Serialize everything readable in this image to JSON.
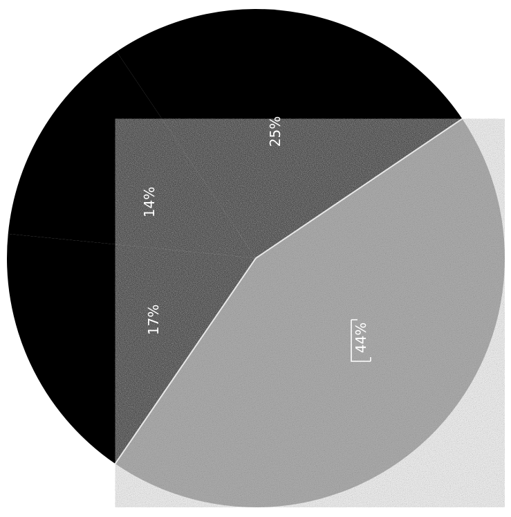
{
  "chart_data": {
    "type": "pie",
    "labels": [
      "25%",
      "14%",
      "17%",
      "44%"
    ],
    "values": [
      25,
      14,
      17,
      44
    ],
    "colors": [
      "#000000",
      "#000000",
      "#000000",
      "#b8b8b8"
    ],
    "separator_color": "#e8e8e8",
    "title": "",
    "legend": "none"
  }
}
